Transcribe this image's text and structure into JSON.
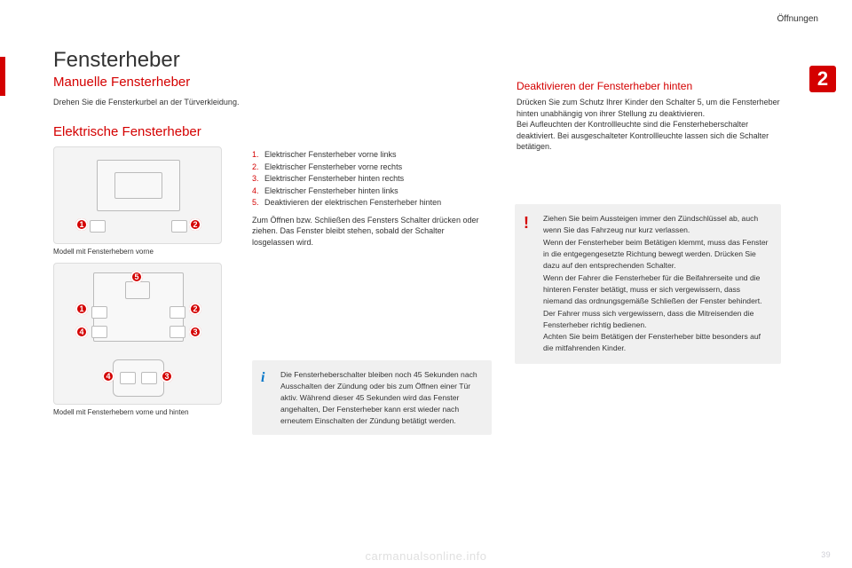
{
  "section_label": "Öffnungen",
  "chapter_number": "2",
  "title": "Fensterheber",
  "subtitle": "Manuelle Fensterheber",
  "intro_text": "Drehen Sie die Fensterkurbel an der Türverkleidung.",
  "electric_heading": "Elektrische Fensterheber",
  "fig1_caption": "Modell mit Fensterhebern vorne",
  "fig2_caption": "Modell mit Fensterhebern vorne und hinten",
  "markers": {
    "m1": "1",
    "m2": "2",
    "m3": "3",
    "m4": "4",
    "m5": "5"
  },
  "list": [
    {
      "n": "1.",
      "t": "Elektrischer Fensterheber vorne links"
    },
    {
      "n": "2.",
      "t": "Elektrischer Fensterheber vorne rechts"
    },
    {
      "n": "3.",
      "t": "Elektrischer Fensterheber hinten rechts"
    },
    {
      "n": "4.",
      "t": "Elektrischer Fensterheber hinten links"
    },
    {
      "n": "5.",
      "t": "Deaktivieren der elektrischen Fensterheber hinten"
    }
  ],
  "list_para": "Zum Öffnen bzw. Schließen des Fensters Schalter drücken oder ziehen. Das Fenster bleibt stehen, sobald der Schalter losgelassen wird.",
  "right_heading": "Deaktivieren der Fensterheber hinten",
  "right_para": "Drücken Sie zum Schutz Ihrer Kinder den Schalter 5, um die Fensterheber hinten unabhängig von ihrer Stellung zu deaktivieren.\nBei Aufleuchten der Kontrollleuchte sind die Fensterheberschalter deaktiviert. Bei ausgeschalteter Kontrollleuchte lassen sich die Schalter betätigen.",
  "info_box": "Die Fensterheberschalter bleiben noch 45 Sekunden nach Ausschalten der Zündung oder bis zum Öffnen einer Tür aktiv. Während dieser 45 Sekunden wird das Fenster angehalten, Der Fensterheber kann erst wieder nach erneutem Einschalten der Zündung betätigt werden.",
  "warn_box": "Ziehen Sie beim Aussteigen immer den Zündschlüssel ab, auch wenn Sie das Fahrzeug nur kurz verlassen.\nWenn der Fensterheber beim Betätigen klemmt, muss das Fenster in die entgegengesetzte Richtung bewegt werden. Drücken Sie dazu auf den entsprechenden Schalter.\nWenn der Fahrer die Fensterheber für die Beifahrerseite und die hinteren Fenster betätigt, muss er sich vergewissern, dass niemand das ordnungsgemäße Schließen der Fenster behindert.\nDer Fahrer muss sich vergewissern, dass die Mitreisenden die Fensterheber richtig bedienen.\nAchten Sie beim Betätigen der Fensterheber bitte besonders auf die mitfahrenden Kinder.",
  "footer": "carmanualsonline.info",
  "pagenum": "39",
  "colors": {
    "accent": "#d40000",
    "info": "#0074c8",
    "box_bg": "#f0f0f0"
  }
}
